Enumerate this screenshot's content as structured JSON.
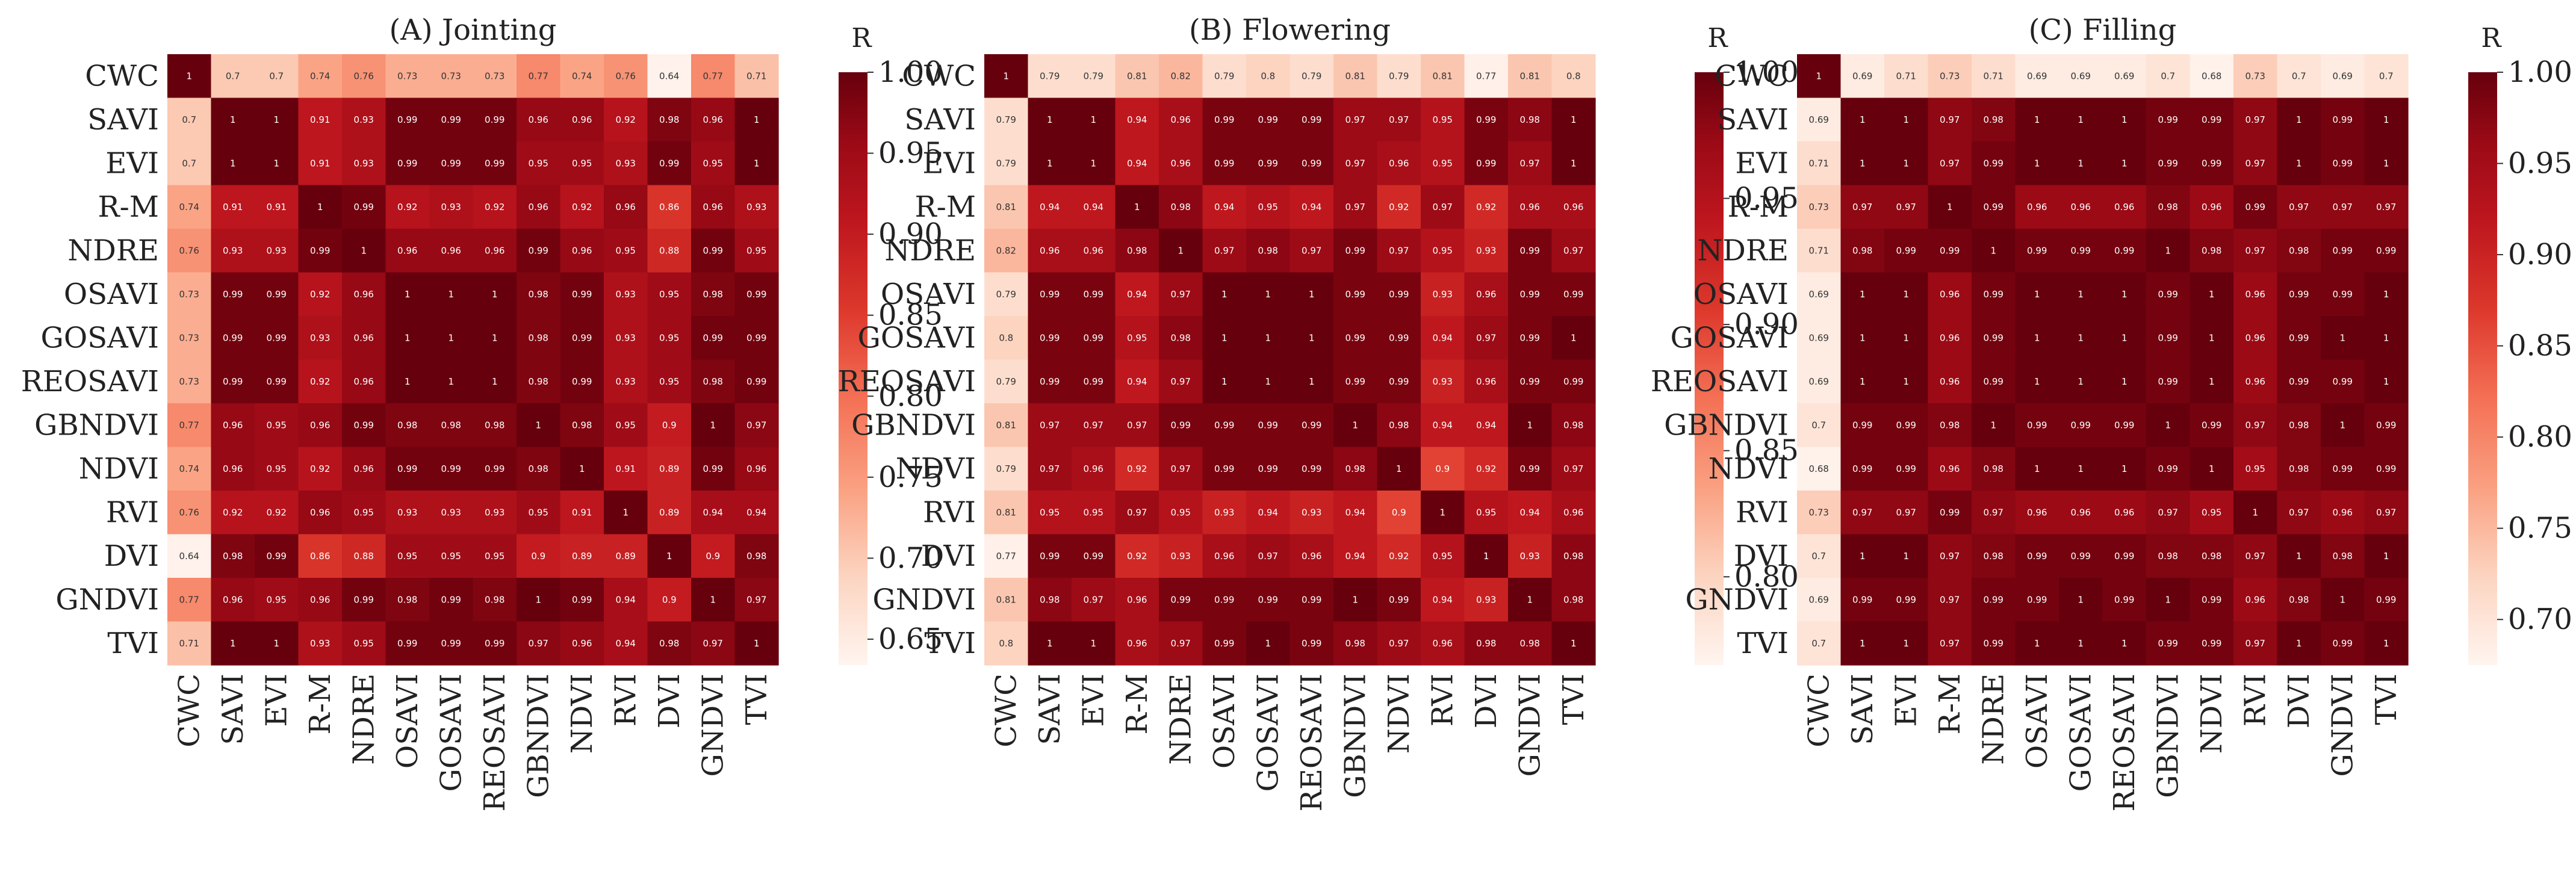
{
  "labels": [
    "CWC",
    "SAVI",
    "EVI",
    "R-M",
    "NDRE",
    "OSAVI",
    "GOSAVI",
    "REOSAVI",
    "GBNDVI",
    "NDVI",
    "RVI",
    "DVI",
    "GNDVI",
    "TVI"
  ],
  "chart_data": [
    {
      "type": "heatmap",
      "title": "(A)  Jointing",
      "colorbar_label": "R",
      "vmin": 0.634,
      "vmax": 1.0,
      "colorbar_ticks": [
        0.65,
        0.7,
        0.75,
        0.8,
        0.85,
        0.9,
        0.95,
        1.0
      ],
      "colorbar_tick_labels": [
        "0.65",
        "0.70",
        "0.75",
        "0.80",
        "0.85",
        "0.90",
        "0.95",
        "1.00"
      ],
      "matrix": [
        [
          1,
          0.7,
          0.7,
          0.74,
          0.76,
          0.73,
          0.73,
          0.73,
          0.77,
          0.74,
          0.76,
          0.64,
          0.77,
          0.71
        ],
        [
          0.7,
          1,
          1,
          0.91,
          0.93,
          0.99,
          0.99,
          0.99,
          0.96,
          0.96,
          0.92,
          0.98,
          0.96,
          1
        ],
        [
          0.7,
          1,
          1,
          0.91,
          0.93,
          0.99,
          0.99,
          0.99,
          0.95,
          0.95,
          0.93,
          0.99,
          0.95,
          1
        ],
        [
          0.74,
          0.91,
          0.91,
          1,
          0.99,
          0.92,
          0.93,
          0.92,
          0.96,
          0.92,
          0.96,
          0.86,
          0.96,
          0.93
        ],
        [
          0.76,
          0.93,
          0.93,
          0.99,
          1,
          0.96,
          0.96,
          0.96,
          0.99,
          0.96,
          0.95,
          0.88,
          0.99,
          0.95
        ],
        [
          0.73,
          0.99,
          0.99,
          0.92,
          0.96,
          1,
          1,
          1,
          0.98,
          0.99,
          0.93,
          0.95,
          0.98,
          0.99
        ],
        [
          0.73,
          0.99,
          0.99,
          0.93,
          0.96,
          1,
          1,
          1,
          0.98,
          0.99,
          0.93,
          0.95,
          0.99,
          0.99
        ],
        [
          0.73,
          0.99,
          0.99,
          0.92,
          0.96,
          1,
          1,
          1,
          0.98,
          0.99,
          0.93,
          0.95,
          0.98,
          0.99
        ],
        [
          0.77,
          0.96,
          0.95,
          0.96,
          0.99,
          0.98,
          0.98,
          0.98,
          1,
          0.98,
          0.95,
          0.9,
          1,
          0.97
        ],
        [
          0.74,
          0.96,
          0.95,
          0.92,
          0.96,
          0.99,
          0.99,
          0.99,
          0.98,
          1,
          0.91,
          0.89,
          0.99,
          0.96
        ],
        [
          0.76,
          0.92,
          0.92,
          0.96,
          0.95,
          0.93,
          0.93,
          0.93,
          0.95,
          0.91,
          1,
          0.89,
          0.94,
          0.94
        ],
        [
          0.64,
          0.98,
          0.99,
          0.86,
          0.88,
          0.95,
          0.95,
          0.95,
          0.9,
          0.89,
          0.89,
          1,
          0.9,
          0.98
        ],
        [
          0.77,
          0.96,
          0.95,
          0.96,
          0.99,
          0.98,
          0.99,
          0.98,
          1,
          0.99,
          0.94,
          0.9,
          1,
          0.97
        ],
        [
          0.71,
          1,
          1,
          0.93,
          0.95,
          0.99,
          0.99,
          0.99,
          0.97,
          0.96,
          0.94,
          0.98,
          0.97,
          1
        ]
      ]
    },
    {
      "type": "heatmap",
      "title": "(B)  Flowering",
      "colorbar_label": "R",
      "vmin": 0.765,
      "vmax": 1.0,
      "colorbar_ticks": [
        0.8,
        0.85,
        0.9,
        0.95,
        1.0
      ],
      "colorbar_tick_labels": [
        "0.80",
        "0.85",
        "0.90",
        "0.95",
        "1.00"
      ],
      "matrix": [
        [
          1,
          0.79,
          0.79,
          0.81,
          0.82,
          0.79,
          0.8,
          0.79,
          0.81,
          0.79,
          0.81,
          0.77,
          0.81,
          0.8
        ],
        [
          0.79,
          1,
          1,
          0.94,
          0.96,
          0.99,
          0.99,
          0.99,
          0.97,
          0.97,
          0.95,
          0.99,
          0.98,
          1
        ],
        [
          0.79,
          1,
          1,
          0.94,
          0.96,
          0.99,
          0.99,
          0.99,
          0.97,
          0.96,
          0.95,
          0.99,
          0.97,
          1
        ],
        [
          0.81,
          0.94,
          0.94,
          1,
          0.98,
          0.94,
          0.95,
          0.94,
          0.97,
          0.92,
          0.97,
          0.92,
          0.96,
          0.96
        ],
        [
          0.82,
          0.96,
          0.96,
          0.98,
          1,
          0.97,
          0.98,
          0.97,
          0.99,
          0.97,
          0.95,
          0.93,
          0.99,
          0.97
        ],
        [
          0.79,
          0.99,
          0.99,
          0.94,
          0.97,
          1,
          1,
          1,
          0.99,
          0.99,
          0.93,
          0.96,
          0.99,
          0.99
        ],
        [
          0.8,
          0.99,
          0.99,
          0.95,
          0.98,
          1,
          1,
          1,
          0.99,
          0.99,
          0.94,
          0.97,
          0.99,
          1
        ],
        [
          0.79,
          0.99,
          0.99,
          0.94,
          0.97,
          1,
          1,
          1,
          0.99,
          0.99,
          0.93,
          0.96,
          0.99,
          0.99
        ],
        [
          0.81,
          0.97,
          0.97,
          0.97,
          0.99,
          0.99,
          0.99,
          0.99,
          1,
          0.98,
          0.94,
          0.94,
          1,
          0.98
        ],
        [
          0.79,
          0.97,
          0.96,
          0.92,
          0.97,
          0.99,
          0.99,
          0.99,
          0.98,
          1,
          0.9,
          0.92,
          0.99,
          0.97
        ],
        [
          0.81,
          0.95,
          0.95,
          0.97,
          0.95,
          0.93,
          0.94,
          0.93,
          0.94,
          0.9,
          1,
          0.95,
          0.94,
          0.96
        ],
        [
          0.77,
          0.99,
          0.99,
          0.92,
          0.93,
          0.96,
          0.97,
          0.96,
          0.94,
          0.92,
          0.95,
          1,
          0.93,
          0.98
        ],
        [
          0.81,
          0.98,
          0.97,
          0.96,
          0.99,
          0.99,
          0.99,
          0.99,
          1,
          0.99,
          0.94,
          0.93,
          1,
          0.98
        ],
        [
          0.8,
          1,
          1,
          0.96,
          0.97,
          0.99,
          1,
          0.99,
          0.98,
          0.97,
          0.96,
          0.98,
          0.98,
          1
        ]
      ]
    },
    {
      "type": "heatmap",
      "title": "(C) Filling",
      "colorbar_label": "R",
      "vmin": 0.675,
      "vmax": 1.0,
      "colorbar_ticks": [
        0.7,
        0.75,
        0.8,
        0.85,
        0.9,
        0.95,
        1.0
      ],
      "colorbar_tick_labels": [
        "0.70",
        "0.75",
        "0.80",
        "0.85",
        "0.90",
        "0.95",
        "1.00"
      ],
      "matrix": [
        [
          1,
          0.69,
          0.71,
          0.73,
          0.71,
          0.69,
          0.69,
          0.69,
          0.7,
          0.68,
          0.73,
          0.7,
          0.69,
          0.7
        ],
        [
          0.69,
          1,
          1,
          0.97,
          0.98,
          1,
          1,
          1,
          0.99,
          0.99,
          0.97,
          1,
          0.99,
          1
        ],
        [
          0.71,
          1,
          1,
          0.97,
          0.99,
          1,
          1,
          1,
          0.99,
          0.99,
          0.97,
          1,
          0.99,
          1
        ],
        [
          0.73,
          0.97,
          0.97,
          1,
          0.99,
          0.96,
          0.96,
          0.96,
          0.98,
          0.96,
          0.99,
          0.97,
          0.97,
          0.97
        ],
        [
          0.71,
          0.98,
          0.99,
          0.99,
          1,
          0.99,
          0.99,
          0.99,
          1,
          0.98,
          0.97,
          0.98,
          0.99,
          0.99
        ],
        [
          0.69,
          1,
          1,
          0.96,
          0.99,
          1,
          1,
          1,
          0.99,
          1,
          0.96,
          0.99,
          0.99,
          1
        ],
        [
          0.69,
          1,
          1,
          0.96,
          0.99,
          1,
          1,
          1,
          0.99,
          1,
          0.96,
          0.99,
          1,
          1
        ],
        [
          0.69,
          1,
          1,
          0.96,
          0.99,
          1,
          1,
          1,
          0.99,
          1,
          0.96,
          0.99,
          0.99,
          1
        ],
        [
          0.7,
          0.99,
          0.99,
          0.98,
          1,
          0.99,
          0.99,
          0.99,
          1,
          0.99,
          0.97,
          0.98,
          1,
          0.99
        ],
        [
          0.68,
          0.99,
          0.99,
          0.96,
          0.98,
          1,
          1,
          1,
          0.99,
          1,
          0.95,
          0.98,
          0.99,
          0.99
        ],
        [
          0.73,
          0.97,
          0.97,
          0.99,
          0.97,
          0.96,
          0.96,
          0.96,
          0.97,
          0.95,
          1,
          0.97,
          0.96,
          0.97
        ],
        [
          0.7,
          1,
          1,
          0.97,
          0.98,
          0.99,
          0.99,
          0.99,
          0.98,
          0.98,
          0.97,
          1,
          0.98,
          1
        ],
        [
          0.69,
          0.99,
          0.99,
          0.97,
          0.99,
          0.99,
          1,
          0.99,
          1,
          0.99,
          0.96,
          0.98,
          1,
          0.99
        ],
        [
          0.7,
          1,
          1,
          0.97,
          0.99,
          1,
          1,
          1,
          0.99,
          0.99,
          0.97,
          1,
          0.99,
          1
        ]
      ]
    }
  ]
}
